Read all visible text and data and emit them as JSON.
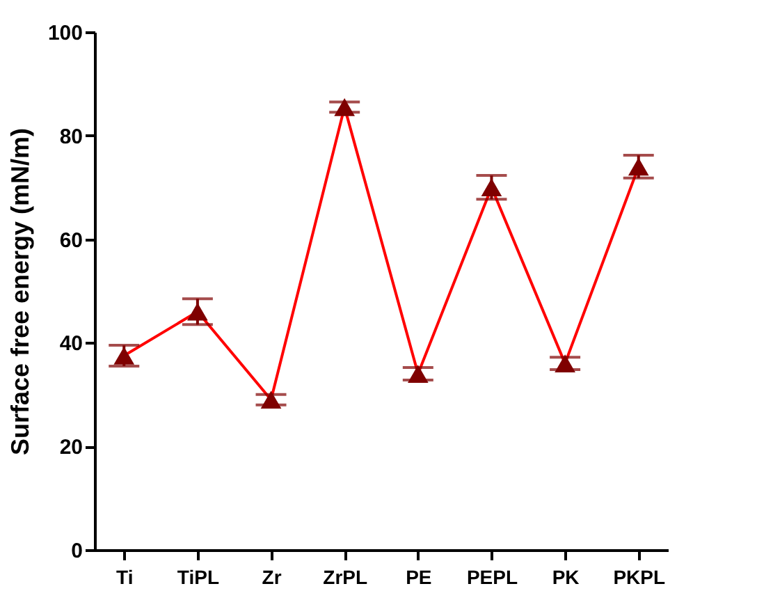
{
  "chart_data": {
    "type": "line",
    "ylabel": "Surface free energy (mN/m)",
    "categories": [
      "Ti",
      "TiPL",
      "Zr",
      "ZrPL",
      "PE",
      "PEPL",
      "PK",
      "PKPL"
    ],
    "series": [
      {
        "color": "#ff0000",
        "values": [
          37.5,
          46,
          29,
          85.5,
          34,
          70,
          36,
          74
        ],
        "errors": [
          2,
          2.5,
          1,
          1,
          1.2,
          2.3,
          1.2,
          2.2
        ],
        "colors": [
          "#7f0000",
          "#7f0000",
          "#7f0000",
          "#7f0000",
          "#7f0000",
          "#7f0000",
          "#7f0000",
          "#7f0000"
        ]
      }
    ],
    "ylim": [
      0,
      100
    ],
    "yticks": [
      0,
      20,
      40,
      60,
      80,
      100
    ],
    "grid": false,
    "marker": "triangle",
    "line_style": "solid"
  }
}
